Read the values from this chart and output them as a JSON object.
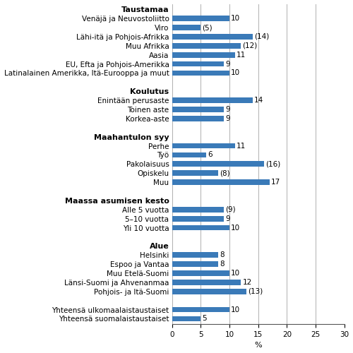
{
  "rows": [
    {
      "label": "Taustamaa",
      "value": null,
      "is_header": true,
      "display": ""
    },
    {
      "label": "Venäjä ja Neuvostoliitto",
      "value": 10,
      "is_header": false,
      "display": "10"
    },
    {
      "label": "Viro",
      "value": 5,
      "is_header": false,
      "display": "(5)"
    },
    {
      "label": "Lähi-itä ja Pohjois-Afrikka",
      "value": 14,
      "is_header": false,
      "display": "(14)"
    },
    {
      "label": "Muu Afrikka",
      "value": 12,
      "is_header": false,
      "display": "(12)"
    },
    {
      "label": "Aasia",
      "value": 11,
      "is_header": false,
      "display": "11"
    },
    {
      "label": "EU, Efta ja Pohjois-Amerikka",
      "value": 9,
      "is_header": false,
      "display": "9"
    },
    {
      "label": "Latinalainen Amerikka, Itä-Eurooppa ja muut",
      "value": 10,
      "is_header": false,
      "display": "10"
    },
    {
      "label": "",
      "value": null,
      "is_header": false,
      "display": ""
    },
    {
      "label": "Koulutus",
      "value": null,
      "is_header": true,
      "display": ""
    },
    {
      "label": "Enintään perusaste",
      "value": 14,
      "is_header": false,
      "display": "14"
    },
    {
      "label": "Toinen aste",
      "value": 9,
      "is_header": false,
      "display": "9"
    },
    {
      "label": "Korkea-aste",
      "value": 9,
      "is_header": false,
      "display": "9"
    },
    {
      "label": "",
      "value": null,
      "is_header": false,
      "display": ""
    },
    {
      "label": "Maahantulon syy",
      "value": null,
      "is_header": true,
      "display": ""
    },
    {
      "label": "Perhe",
      "value": 11,
      "is_header": false,
      "display": "11"
    },
    {
      "label": "Työ",
      "value": 6,
      "is_header": false,
      "display": "6"
    },
    {
      "label": "Pakolaisuus",
      "value": 16,
      "is_header": false,
      "display": "(16)"
    },
    {
      "label": "Opiskelu",
      "value": 8,
      "is_header": false,
      "display": "(8)"
    },
    {
      "label": "Muu",
      "value": 17,
      "is_header": false,
      "display": "17"
    },
    {
      "label": "",
      "value": null,
      "is_header": false,
      "display": ""
    },
    {
      "label": "Maassa asumisen kesto",
      "value": null,
      "is_header": true,
      "display": ""
    },
    {
      "label": "Alle 5 vuotta",
      "value": 9,
      "is_header": false,
      "display": "(9)"
    },
    {
      "label": "5–10 vuotta",
      "value": 9,
      "is_header": false,
      "display": "9"
    },
    {
      "label": "Yli 10 vuotta",
      "value": 10,
      "is_header": false,
      "display": "10"
    },
    {
      "label": "",
      "value": null,
      "is_header": false,
      "display": ""
    },
    {
      "label": "Alue",
      "value": null,
      "is_header": true,
      "display": ""
    },
    {
      "label": "Helsinki",
      "value": 8,
      "is_header": false,
      "display": "8"
    },
    {
      "label": "Espoo ja Vantaa",
      "value": 8,
      "is_header": false,
      "display": "8"
    },
    {
      "label": "Muu Etelä-Suomi",
      "value": 10,
      "is_header": false,
      "display": "10"
    },
    {
      "label": "Länsi-Suomi ja Ahvenanmaa",
      "value": 12,
      "is_header": false,
      "display": "12"
    },
    {
      "label": "Pohjois- ja Itä-Suomi",
      "value": 13,
      "is_header": false,
      "display": "(13)"
    },
    {
      "label": "",
      "value": null,
      "is_header": false,
      "display": ""
    },
    {
      "label": "Yhteensä ulkomaalaistaustaiset",
      "value": 10,
      "is_header": false,
      "display": "10"
    },
    {
      "label": "Yhteensä suomalaistaustaiset",
      "value": 5,
      "is_header": false,
      "display": "5"
    }
  ],
  "bar_color": "#3a7ab8",
  "figure_width": 5.0,
  "figure_height": 5.0,
  "dpi": 100,
  "xlim": [
    0,
    30
  ],
  "xticks": [
    0,
    5,
    10,
    15,
    20,
    25,
    30
  ],
  "xlabel": "%",
  "grid_color": "#b0b0b0",
  "bg_color": "#ffffff",
  "bar_height": 0.6,
  "label_fontsize": 7.5,
  "header_fontsize": 8.0,
  "value_fontsize": 7.5,
  "tick_fontsize": 7.5,
  "xlabel_fontsize": 8.0
}
